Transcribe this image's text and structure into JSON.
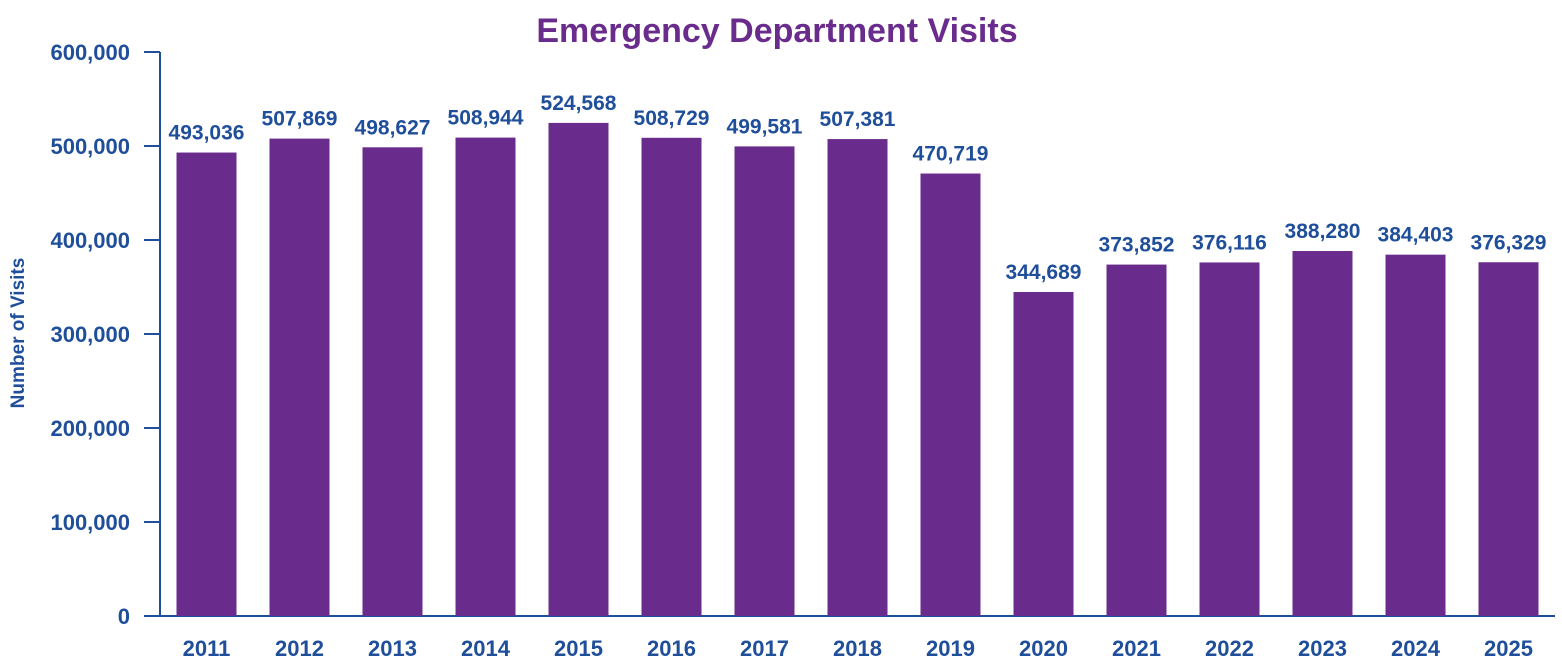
{
  "colors": {
    "bar": "#6a2c8c",
    "title": "#6a2c8c",
    "text": "#1f4e9a",
    "axis": "#1f4e9a",
    "background": "#ffffff"
  },
  "chart_data": {
    "type": "bar",
    "title": "Emergency Department Visits",
    "xlabel": "",
    "ylabel": "Number of Visits",
    "ylim": [
      0,
      600000
    ],
    "y_ticks": [
      0,
      100000,
      200000,
      300000,
      400000,
      500000,
      600000
    ],
    "y_tick_labels": [
      "0",
      "100,000",
      "200,000",
      "300,000",
      "400,000",
      "500,000",
      "600,000"
    ],
    "grid": false,
    "categories": [
      "2011",
      "2012",
      "2013",
      "2014",
      "2015",
      "2016",
      "2017",
      "2018",
      "2019",
      "2020",
      "2021",
      "2022",
      "2023",
      "2024",
      "2025"
    ],
    "values": [
      493036,
      507869,
      498627,
      508944,
      524568,
      508729,
      499581,
      507381,
      470719,
      344689,
      373852,
      376116,
      388280,
      384403,
      376329
    ],
    "data_labels": [
      "493,036",
      "507,869",
      "498,627",
      "508,944",
      "524,568",
      "508,729",
      "499,581",
      "507,381",
      "470,719",
      "344,689",
      "373,852",
      "376,116",
      "388,280",
      "384,403",
      "376,329"
    ]
  }
}
